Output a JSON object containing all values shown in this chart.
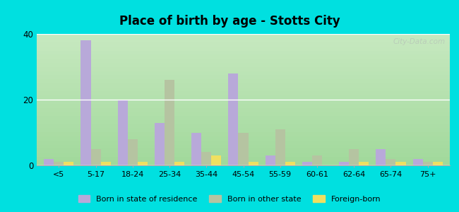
{
  "title": "Place of birth by age - Stotts City",
  "categories": [
    "<5",
    "5-17",
    "18-24",
    "25-34",
    "35-44",
    "45-54",
    "55-59",
    "60-61",
    "62-64",
    "65-74",
    "75+"
  ],
  "born_in_state": [
    2,
    38,
    20,
    13,
    10,
    28,
    3,
    1,
    1,
    5,
    2
  ],
  "born_other_state": [
    1,
    5,
    8,
    26,
    4,
    10,
    11,
    3,
    5,
    2,
    1
  ],
  "foreign_born": [
    1,
    1,
    1,
    1,
    3,
    1,
    1,
    0,
    1,
    1,
    1
  ],
  "color_state": "#b8a9d9",
  "color_other": "#b5c4a1",
  "color_foreign": "#f0e060",
  "ylim": [
    0,
    40
  ],
  "yticks": [
    0,
    20,
    40
  ],
  "background_outer": "#00e0e0",
  "watermark": "City-Data.com",
  "bar_width": 0.27,
  "legend_labels": [
    "Born in state of residence",
    "Born in other state",
    "Foreign-born"
  ]
}
